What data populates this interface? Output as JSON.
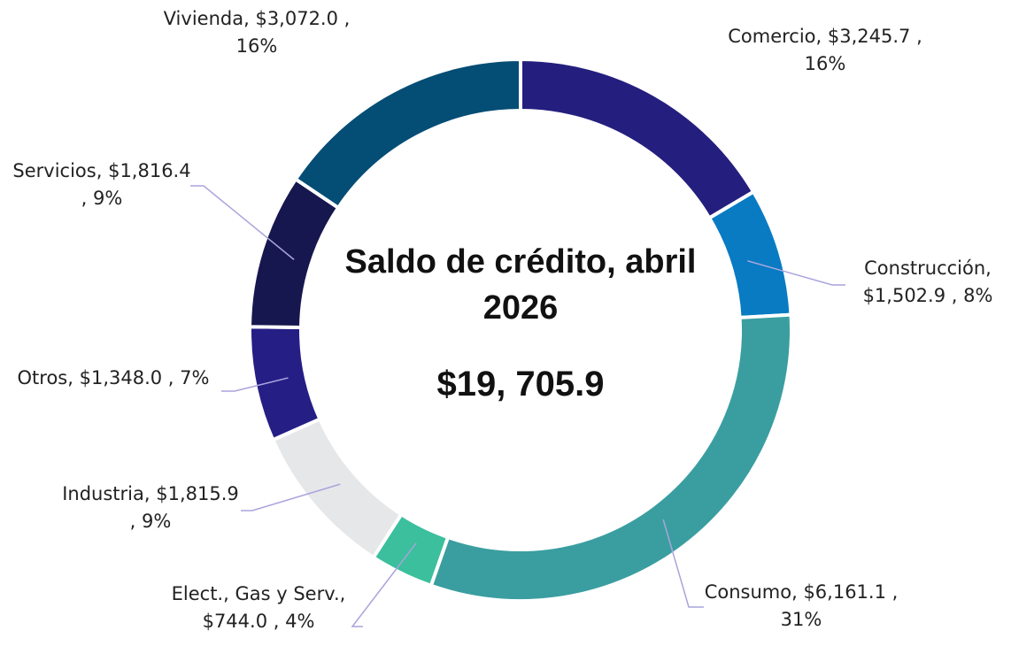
{
  "chart_data": {
    "type": "donut",
    "title": "Saldo de crédito, abril 2026",
    "total": "$19, 705.9",
    "categories": [
      "Comercio,",
      "Construcción,",
      "Consumo,",
      "Elect., Gas y Serv.,",
      "Industria,",
      "Otros,",
      "Servicios,",
      "Vivienda,"
    ],
    "values": [
      3245.7,
      1502.9,
      6161.1,
      744.0,
      1815.9,
      1348.0,
      1816.4,
      3072.0
    ],
    "value_labels": [
      "$3,245.7 , 16%",
      "$1,502.9 , 8%",
      "$6,161.1 , 31%",
      "$744.0 , 4%",
      "$1,815.9 , 9%",
      "$1,348.0 , 7%",
      "$1,816.4 , 9%",
      "$3,072.0 , 16%"
    ],
    "colors": [
      "#241f7e",
      "#087bc3",
      "#3a9ea0",
      "#3bbf9d",
      "#e6e7e9",
      "#251e85",
      "#17174f",
      "#044d75"
    ]
  }
}
